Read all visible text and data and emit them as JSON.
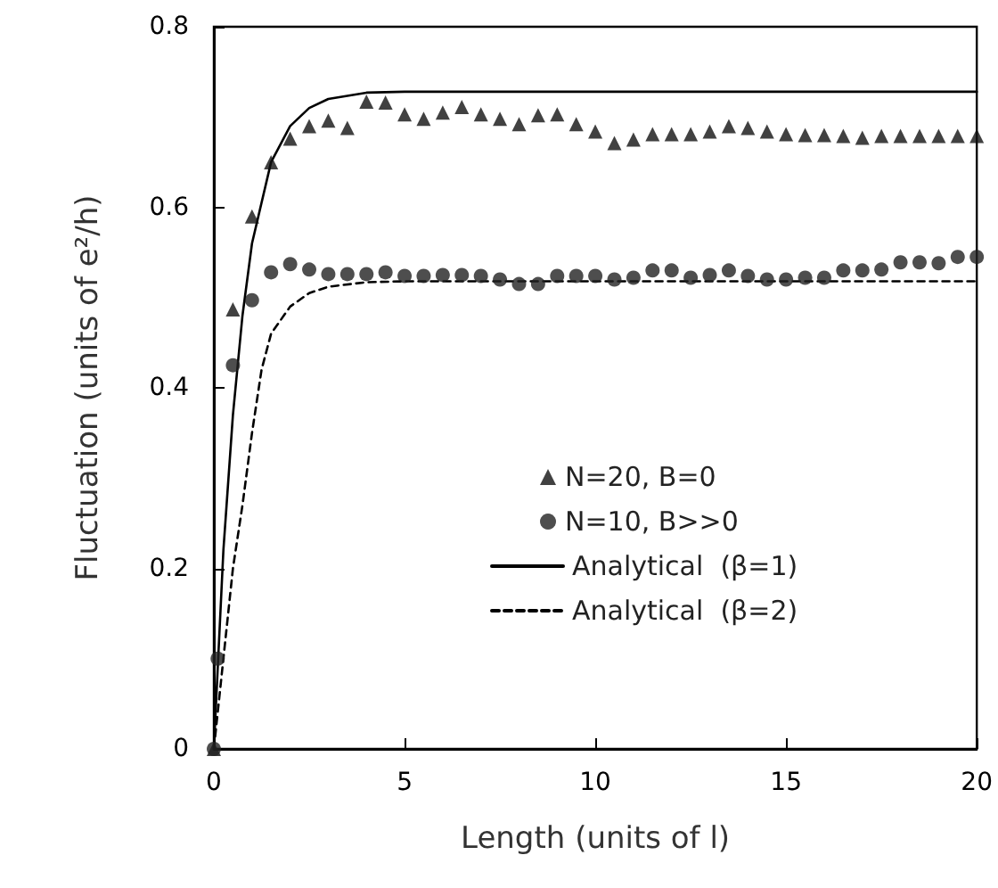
{
  "chart_data": {
    "type": "scatter",
    "xlabel": "Length (units of l)",
    "ylabel": "Fluctuation (units of e²/h)",
    "xlim": [
      0,
      20
    ],
    "xticks": [
      0,
      5,
      10,
      15,
      20
    ],
    "ylim": [
      0,
      0.8
    ],
    "yticks": [
      0,
      0.2,
      0.4,
      0.6,
      0.8
    ],
    "grid": false,
    "legend": "bottom",
    "series": [
      {
        "name": "N=20, B=0",
        "marker": "triangle",
        "color": "#111111",
        "x": [
          0,
          0.5,
          1,
          1.5,
          2,
          2.5,
          3,
          3.5,
          4,
          4.5,
          5,
          5.5,
          6,
          6.5,
          7,
          7.5,
          8,
          8.5,
          9,
          9.5,
          10,
          10.5,
          11,
          11.5,
          12,
          12.5,
          13,
          13.5,
          14,
          14.5,
          15,
          15.5,
          16,
          16.5,
          17,
          17.5,
          18,
          18.5,
          19,
          19.5,
          20
        ],
        "values": [
          0,
          0.487,
          0.59,
          0.65,
          0.676,
          0.69,
          0.696,
          0.688,
          0.717,
          0.716,
          0.703,
          0.698,
          0.705,
          0.711,
          0.703,
          0.698,
          0.692,
          0.702,
          0.703,
          0.692,
          0.684,
          0.671,
          0.675,
          0.681,
          0.681,
          0.681,
          0.684,
          0.69,
          0.688,
          0.684,
          0.681,
          0.68,
          0.68,
          0.679,
          0.677,
          0.679,
          0.679,
          0.679,
          0.679,
          0.679,
          0.679
        ]
      },
      {
        "name": "N=10, B>>0",
        "marker": "circle",
        "color": "#222222",
        "x": [
          0,
          0.1,
          0.5,
          1,
          1.5,
          2,
          2.5,
          3,
          3.5,
          4,
          4.5,
          5,
          5.5,
          6,
          6.5,
          7,
          7.5,
          8,
          8.5,
          9,
          9.5,
          10,
          10.5,
          11,
          11.5,
          12,
          12.5,
          13,
          13.5,
          14,
          14.5,
          15,
          15.5,
          16,
          16.5,
          17,
          17.5,
          18,
          18.5,
          19,
          19.5,
          20
        ],
        "values": [
          0,
          0.1,
          0.425,
          0.497,
          0.528,
          0.537,
          0.531,
          0.526,
          0.526,
          0.526,
          0.528,
          0.524,
          0.524,
          0.525,
          0.525,
          0.524,
          0.52,
          0.515,
          0.515,
          0.524,
          0.524,
          0.524,
          0.52,
          0.522,
          0.53,
          0.53,
          0.522,
          0.525,
          0.53,
          0.524,
          0.52,
          0.52,
          0.522,
          0.522,
          0.53,
          0.53,
          0.531,
          0.539,
          0.539,
          0.538,
          0.545,
          0.545
        ]
      },
      {
        "name": "Analytical  (β=1)",
        "type": "line",
        "marker": "none",
        "line_style": "solid",
        "color": "#000000",
        "x": [
          0,
          0.25,
          0.5,
          0.75,
          1,
          1.5,
          2,
          2.5,
          3,
          4,
          5,
          20
        ],
        "values": [
          0,
          0.22,
          0.37,
          0.48,
          0.56,
          0.65,
          0.69,
          0.71,
          0.72,
          0.727,
          0.728,
          0.728
        ]
      },
      {
        "name": "Analytical  (β=2)",
        "type": "line",
        "marker": "none",
        "line_style": "dashed",
        "color": "#000000",
        "x": [
          0,
          0.25,
          0.5,
          0.75,
          1,
          1.25,
          1.5,
          2,
          2.5,
          3,
          4,
          5,
          20
        ],
        "values": [
          0,
          0.1,
          0.2,
          0.27,
          0.35,
          0.42,
          0.46,
          0.49,
          0.505,
          0.512,
          0.517,
          0.518,
          0.518
        ]
      }
    ]
  }
}
